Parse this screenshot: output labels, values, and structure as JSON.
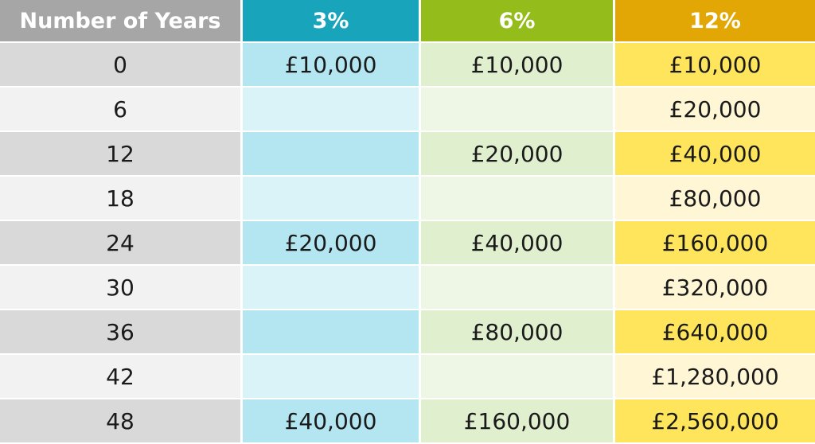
{
  "chart_data": {
    "type": "table",
    "headers": [
      "Number of Years",
      "3%",
      "6%",
      "12%"
    ],
    "rows": [
      [
        "0",
        "£10,000",
        "£10,000",
        "£10,000"
      ],
      [
        "6",
        "",
        "",
        "£20,000"
      ],
      [
        "12",
        "",
        "£20,000",
        "£40,000"
      ],
      [
        "18",
        "",
        "",
        "£80,000"
      ],
      [
        "24",
        "£20,000",
        "£40,000",
        "£160,000"
      ],
      [
        "30",
        "",
        "",
        "£320,000"
      ],
      [
        "36",
        "",
        "£80,000",
        "£640,000"
      ],
      [
        "42",
        "",
        "",
        "£1,280,000"
      ],
      [
        "48",
        "£40,000",
        "£160,000",
        "£2,560,000"
      ]
    ]
  },
  "colors": {
    "header_years": "#a6a6a6",
    "header_3pct": "#18a5bb",
    "header_6pct": "#94bd1b",
    "header_12pct": "#e2a705"
  }
}
